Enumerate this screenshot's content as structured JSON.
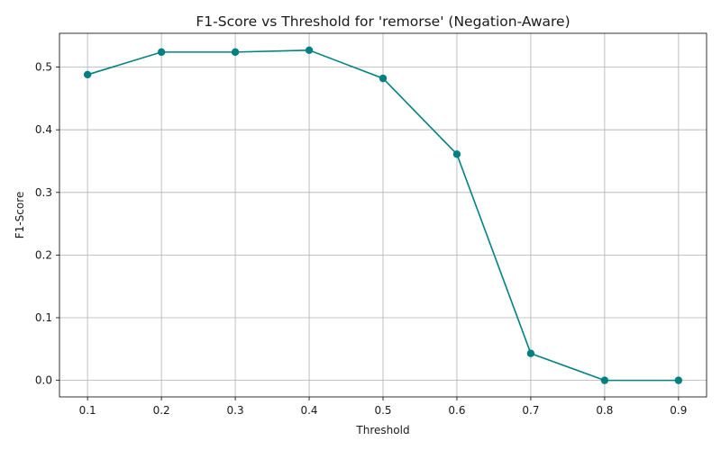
{
  "chart_data": {
    "type": "line",
    "title": "F1-Score vs Threshold for 'remorse' (Negation-Aware)",
    "xlabel": "Threshold",
    "ylabel": "F1-Score",
    "xlim": [
      0.062,
      0.938
    ],
    "ylim": [
      -0.0264,
      0.554
    ],
    "x_ticks": [
      0.1,
      0.2,
      0.3,
      0.4,
      0.5,
      0.6,
      0.7,
      0.8,
      0.9
    ],
    "x_tick_labels": [
      "0.1",
      "0.2",
      "0.3",
      "0.4",
      "0.5",
      "0.6",
      "0.7",
      "0.8",
      "0.9"
    ],
    "y_ticks": [
      0.0,
      0.1,
      0.2,
      0.3,
      0.4,
      0.5
    ],
    "y_tick_labels": [
      "0.0",
      "0.1",
      "0.2",
      "0.3",
      "0.4",
      "0.5"
    ],
    "grid": true,
    "series": [
      {
        "color": "#008080",
        "marker": "circle",
        "x": [
          0.1,
          0.2,
          0.3,
          0.4,
          0.5,
          0.6,
          0.7,
          0.8,
          0.9
        ],
        "y": [
          0.488,
          0.524,
          0.524,
          0.527,
          0.482,
          0.361,
          0.043,
          0.0,
          0.0
        ]
      }
    ]
  }
}
